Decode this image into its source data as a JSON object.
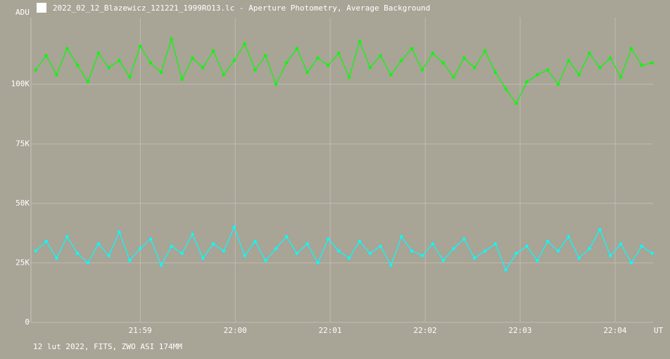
{
  "chart_data": {
    "type": "line",
    "title": "2022_02_12_Blazewicz_121221_1999RO13.lc - Aperture Photometry, Average Background",
    "ylabel": "ADU",
    "xlabel": "UT",
    "footer": "12 lut 2022, FITS, ZWO ASI 174MM",
    "grid": true,
    "xlim": [
      1317.85,
      1324.4
    ],
    "xticks": [
      {
        "value": 1319,
        "label": "21:59"
      },
      {
        "value": 1320,
        "label": "22:00"
      },
      {
        "value": 1321,
        "label": "22:01"
      },
      {
        "value": 1322,
        "label": "22:02"
      },
      {
        "value": 1323,
        "label": "22:03"
      },
      {
        "value": 1324,
        "label": "22:04"
      }
    ],
    "ylim": [
      0,
      128000
    ],
    "yticks": [
      0,
      {
        "value": 25000,
        "label": "25K"
      },
      {
        "value": 50000,
        "label": "50K"
      },
      {
        "value": 75000,
        "label": "75K"
      },
      {
        "value": 100000,
        "label": "100K"
      }
    ],
    "x": [
      1317.9,
      1318.01,
      1318.12,
      1318.23,
      1318.34,
      1318.45,
      1318.56,
      1318.67,
      1318.78,
      1318.89,
      1319.0,
      1319.11,
      1319.22,
      1319.33,
      1319.44,
      1319.55,
      1319.66,
      1319.77,
      1319.88,
      1319.99,
      1320.1,
      1320.21,
      1320.32,
      1320.43,
      1320.54,
      1320.65,
      1320.76,
      1320.87,
      1320.98,
      1321.09,
      1321.2,
      1321.31,
      1321.42,
      1321.53,
      1321.64,
      1321.75,
      1321.86,
      1321.97,
      1322.08,
      1322.19,
      1322.3,
      1322.41,
      1322.52,
      1322.63,
      1322.74,
      1322.85,
      1322.96,
      1323.07,
      1323.18,
      1323.29,
      1323.4,
      1323.51,
      1323.62,
      1323.73,
      1323.84,
      1323.95,
      1324.06,
      1324.17,
      1324.28,
      1324.39
    ],
    "series": [
      {
        "color": "#00ff00",
        "values": [
          106000,
          112000,
          104000,
          115000,
          108000,
          101000,
          113000,
          107000,
          110000,
          103000,
          116000,
          109000,
          105000,
          119000,
          102000,
          111000,
          107000,
          114000,
          104000,
          110000,
          117000,
          106000,
          112000,
          100000,
          109000,
          115000,
          105000,
          111000,
          108000,
          113000,
          103000,
          118000,
          107000,
          112000,
          104000,
          110000,
          115000,
          106000,
          113000,
          109000,
          103000,
          111000,
          107000,
          114000,
          105000,
          98000,
          92000,
          101000,
          104000,
          106000,
          100000,
          110000,
          104000,
          113000,
          107000,
          111000,
          103000,
          115000,
          108000,
          109000
        ]
      },
      {
        "color": "#00ffff",
        "values": [
          30000,
          34000,
          27000,
          36000,
          29000,
          25000,
          33000,
          28000,
          38000,
          26000,
          31000,
          35000,
          24000,
          32000,
          29000,
          37000,
          27000,
          33000,
          30000,
          40000,
          28000,
          34000,
          26000,
          31000,
          36000,
          29000,
          33000,
          25000,
          35000,
          30000,
          27000,
          34000,
          29000,
          32000,
          24000,
          36000,
          30000,
          28000,
          33000,
          26000,
          31000,
          35000,
          27000,
          30000,
          33000,
          22000,
          29000,
          32000,
          26000,
          34000,
          30000,
          36000,
          27000,
          31000,
          39000,
          28000,
          33000,
          25000,
          32000,
          29000
        ]
      }
    ]
  }
}
